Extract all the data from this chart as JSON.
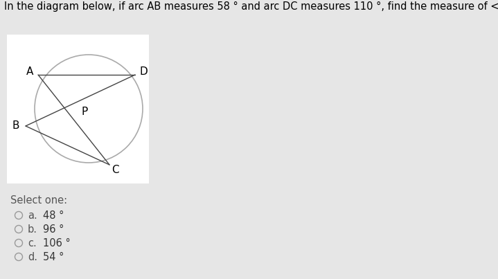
{
  "title": "In the diagram below, if arc AB measures 58 ° and arc DC measures 110 °, find the measure of < BPC.",
  "title_bg": "#d8f000",
  "title_fontsize": 10.5,
  "bg_color": "#e6e6e6",
  "select_one_text": "Select one:",
  "options": [
    {
      "label": "a.",
      "value": "48 °"
    },
    {
      "label": "b.",
      "value": "96 °"
    },
    {
      "label": "c.",
      "value": "106 °"
    },
    {
      "label": "d.",
      "value": "54 °"
    }
  ],
  "option_fontsize": 10.5,
  "select_fontsize": 10.5,
  "circle_color": "#aaaaaa",
  "circle_linewidth": 1.2,
  "line_color": "#444444",
  "point_fontsize": 11
}
